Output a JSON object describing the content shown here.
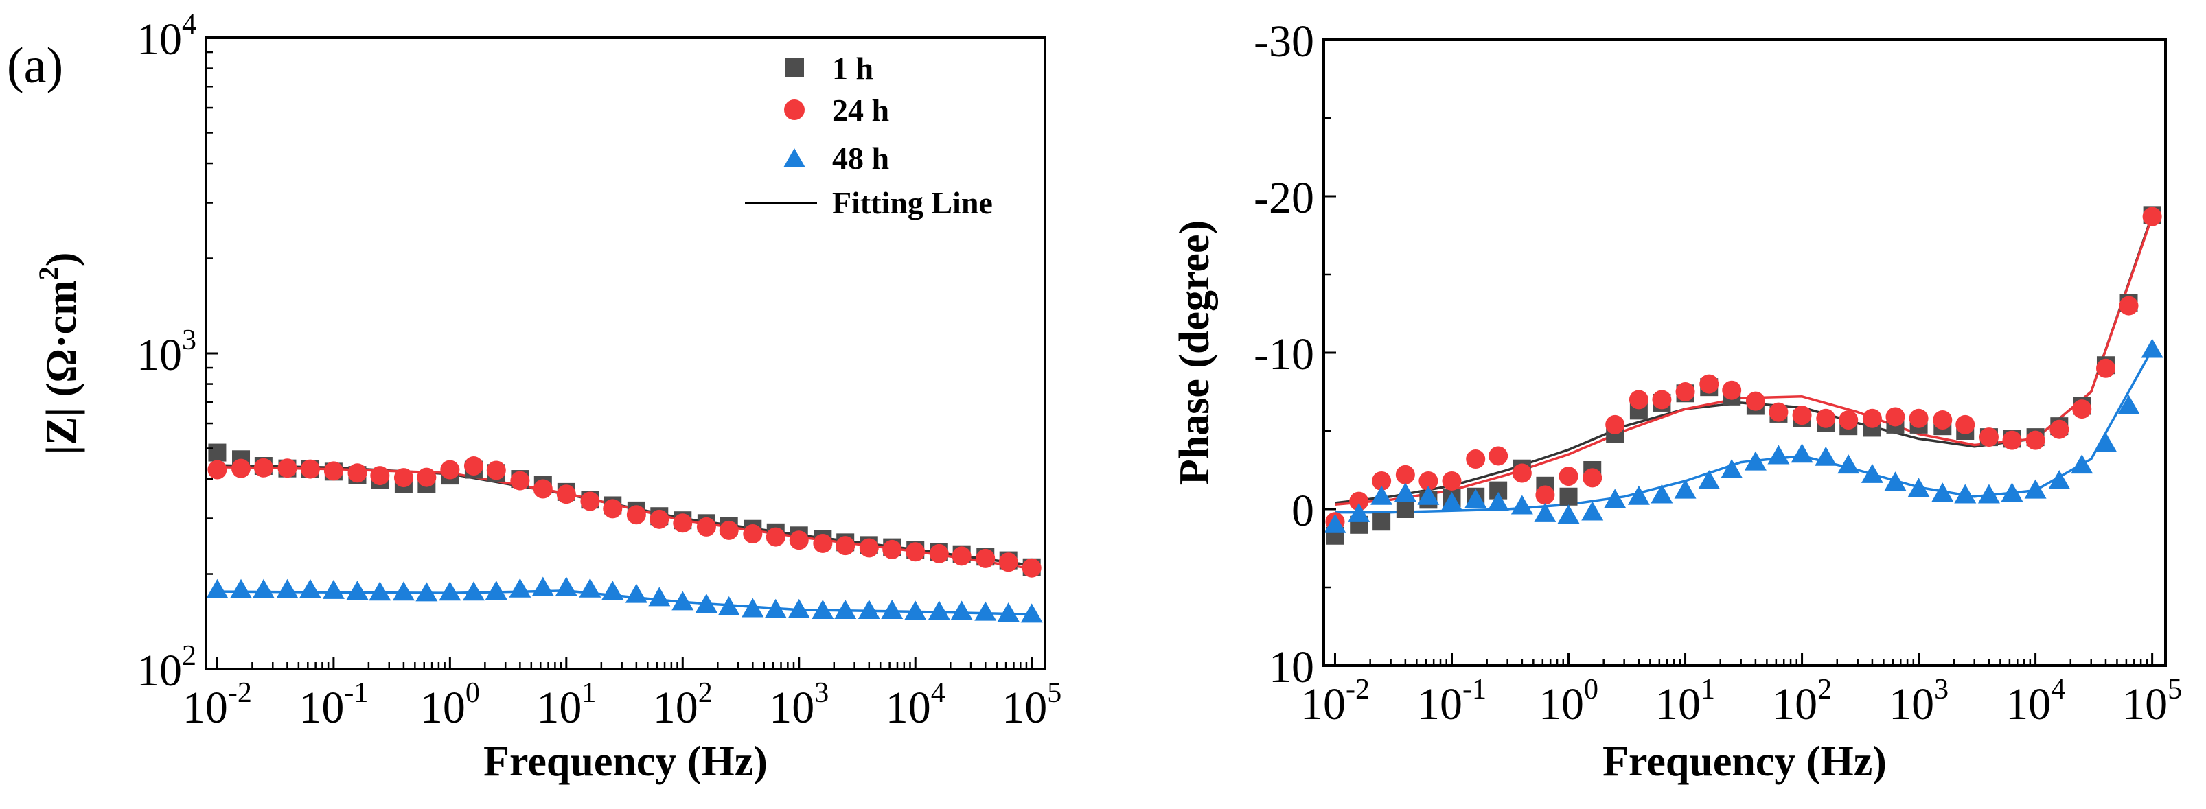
{
  "panel_label": "(a)",
  "colors": {
    "h1": "#4d4d4d",
    "h24": "#f2393b",
    "h48": "#1c7fdb",
    "fit_h1": "#333333",
    "fit_h24": "#e8353a",
    "fit_h48": "#1c7fdb",
    "axis": "#000000"
  },
  "legend": {
    "h1": "1 h",
    "h24": "24 h",
    "h48": "48 h",
    "fit": "Fitting Line"
  },
  "chart_data": [
    {
      "type": "scatter",
      "title": "",
      "xlabel": "Frequency (Hz)",
      "ylabel_parts": {
        "main": "|Z| (Ω·cm",
        "sup": "2",
        "end": ")"
      },
      "xscale": "log",
      "yscale": "log",
      "xlim": [
        0.008,
        130000
      ],
      "ylim": [
        100,
        10000
      ],
      "xticks": [
        {
          "base": "10",
          "exp": "-2",
          "value": 0.01
        },
        {
          "base": "10",
          "exp": "-1",
          "value": 0.1
        },
        {
          "base": "10",
          "exp": "0",
          "value": 1
        },
        {
          "base": "10",
          "exp": "1",
          "value": 10
        },
        {
          "base": "10",
          "exp": "2",
          "value": 100
        },
        {
          "base": "10",
          "exp": "3",
          "value": 1000
        },
        {
          "base": "10",
          "exp": "4",
          "value": 10000
        },
        {
          "base": "10",
          "exp": "5",
          "value": 100000
        }
      ],
      "yticks": [
        {
          "base": "10",
          "exp": "2",
          "value": 100
        },
        {
          "base": "10",
          "exp": "3",
          "value": 1000
        },
        {
          "base": "10",
          "exp": "4",
          "value": 10000
        }
      ],
      "legend_position": "top-right",
      "x": [
        0.01,
        0.016,
        0.025,
        0.04,
        0.063,
        0.1,
        0.16,
        0.25,
        0.4,
        0.63,
        1,
        1.6,
        2.5,
        4,
        6.3,
        10,
        16,
        25,
        40,
        63,
        100,
        160,
        250,
        400,
        630,
        1000,
        1600,
        2500,
        4000,
        6300,
        10000,
        16000,
        25000,
        40000,
        63000,
        100000
      ],
      "series": [
        {
          "name": "1 h",
          "key": "h1",
          "marker": "square",
          "values": [
            485,
            462,
            440,
            432,
            430,
            422,
            412,
            398,
            385,
            385,
            410,
            428,
            418,
            400,
            384,
            364,
            344,
            330,
            318,
            305,
            296,
            290,
            284,
            278,
            271,
            265,
            258,
            252,
            247,
            243,
            238,
            235,
            231,
            227,
            221,
            210
          ]
        },
        {
          "name": "24 h",
          "key": "h24",
          "marker": "circle",
          "values": [
            428,
            432,
            434,
            433,
            430,
            424,
            418,
            410,
            404,
            405,
            428,
            440,
            426,
            395,
            372,
            358,
            340,
            322,
            308,
            298,
            290,
            282,
            275,
            268,
            262,
            256,
            250,
            246,
            242,
            239,
            235,
            232,
            228,
            224,
            218,
            209
          ]
        },
        {
          "name": "48 h",
          "key": "h48",
          "marker": "triangle",
          "values": [
            178,
            178,
            178,
            178,
            178,
            177,
            176,
            175,
            175,
            174,
            175,
            175,
            176,
            179,
            181,
            181,
            179,
            176,
            172,
            168,
            163,
            160,
            157,
            155,
            154,
            154,
            153,
            153,
            153,
            153,
            152,
            152,
            152,
            151,
            150,
            149
          ]
        }
      ],
      "fit_x": [
        0.01,
        0.1,
        1,
        10,
        100,
        1000,
        10000,
        100000
      ],
      "fits": [
        {
          "key": "h1",
          "values": [
            442,
            435,
            415,
            358,
            300,
            266,
            239,
            213
          ]
        },
        {
          "key": "h24",
          "values": [
            436,
            430,
            418,
            360,
            296,
            262,
            236,
            208
          ]
        },
        {
          "key": "h48",
          "values": [
            176,
            175,
            174,
            177,
            163,
            154,
            152,
            149
          ]
        }
      ]
    },
    {
      "type": "scatter",
      "title": "",
      "xlabel": "Frequency (Hz)",
      "ylabel": "Phase (degree)",
      "xscale": "log",
      "yscale": "linear",
      "y_inverted": true,
      "xlim": [
        0.008,
        130000
      ],
      "ylim": [
        10,
        -30
      ],
      "xticks": [
        {
          "base": "10",
          "exp": "-2",
          "value": 0.01
        },
        {
          "base": "10",
          "exp": "-1",
          "value": 0.1
        },
        {
          "base": "10",
          "exp": "0",
          "value": 1
        },
        {
          "base": "10",
          "exp": "1",
          "value": 10
        },
        {
          "base": "10",
          "exp": "2",
          "value": 100
        },
        {
          "base": "10",
          "exp": "3",
          "value": 1000
        },
        {
          "base": "10",
          "exp": "4",
          "value": 10000
        },
        {
          "base": "10",
          "exp": "5",
          "value": 100000
        }
      ],
      "yticks": [
        {
          "label": "10",
          "value": 10
        },
        {
          "label": "0",
          "value": 0
        },
        {
          "label": "-10",
          "value": -10
        },
        {
          "label": "-20",
          "value": -20
        },
        {
          "label": "-30",
          "value": -30
        }
      ],
      "x": [
        0.01,
        0.016,
        0.025,
        0.04,
        0.063,
        0.1,
        0.16,
        0.25,
        0.4,
        0.63,
        1,
        1.6,
        2.5,
        4,
        6.3,
        10,
        16,
        25,
        40,
        63,
        100,
        160,
        250,
        400,
        630,
        1000,
        1600,
        2500,
        4000,
        6300,
        10000,
        16000,
        25000,
        40000,
        63000,
        100000
      ],
      "series": [
        {
          "name": "1 h",
          "key": "h1",
          "marker": "square",
          "values": [
            1.7,
            1.0,
            0.8,
            0,
            -0.6,
            -0.7,
            -0.8,
            -1.2,
            -2.6,
            -1.5,
            -0.8,
            -2.5,
            -4.8,
            -6.3,
            -6.8,
            -7.4,
            -7.8,
            -7.2,
            -6.6,
            -6.1,
            -5.8,
            -5.5,
            -5.3,
            -5.2,
            -5.4,
            -5.4,
            -5.3,
            -5.0,
            -4.6,
            -4.5,
            -4.6,
            -5.3,
            -6.6,
            -9.2,
            -13.2,
            -18.8
          ]
        },
        {
          "name": "24 h",
          "key": "h24",
          "marker": "circle",
          "values": [
            0.8,
            -0.5,
            -1.8,
            -2.2,
            -1.8,
            -1.8,
            -3.2,
            -3.4,
            -2.3,
            -0.9,
            -2.1,
            -2.0,
            -5.4,
            -7.0,
            -7.0,
            -7.5,
            -8.0,
            -7.6,
            -6.9,
            -6.2,
            -6.0,
            -5.8,
            -5.7,
            -5.8,
            -5.9,
            -5.8,
            -5.7,
            -5.4,
            -4.6,
            -4.4,
            -4.4,
            -5.1,
            -6.4,
            -9.0,
            -13.0,
            -18.7
          ]
        },
        {
          "name": "48 h",
          "key": "h48",
          "marker": "triangle",
          "values": [
            1.0,
            0.3,
            -0.8,
            -1.0,
            -0.8,
            -0.4,
            -0.6,
            -0.4,
            -0.2,
            0.3,
            0.4,
            0.2,
            -0.6,
            -0.8,
            -0.9,
            -1.2,
            -1.8,
            -2.5,
            -3.0,
            -3.4,
            -3.5,
            -3.3,
            -2.8,
            -2.2,
            -1.7,
            -1.3,
            -1.0,
            -0.9,
            -0.9,
            -1.0,
            -1.2,
            -1.8,
            -2.8,
            -4.2,
            -6.6,
            -10.2
          ]
        }
      ],
      "fit_x": [
        0.01,
        0.03,
        0.1,
        0.3,
        1,
        3,
        10,
        30,
        100,
        300,
        1000,
        3000,
        10000,
        30000,
        100000
      ],
      "fits": [
        {
          "key": "h1",
          "values": [
            -0.4,
            -0.8,
            -1.5,
            -2.5,
            -3.8,
            -5.3,
            -6.4,
            -6.8,
            -6.5,
            -5.5,
            -4.5,
            -4.0,
            -4.5,
            -7.5,
            -18.8
          ]
        },
        {
          "key": "h24",
          "values": [
            -0.3,
            -0.6,
            -1.2,
            -2.2,
            -3.5,
            -5.0,
            -6.4,
            -7.1,
            -7.2,
            -6.2,
            -4.8,
            -4.1,
            -4.5,
            -7.5,
            -18.7
          ]
        },
        {
          "key": "h48",
          "values": [
            0.2,
            0.2,
            0.1,
            0,
            -0.3,
            -0.8,
            -1.8,
            -3.0,
            -3.4,
            -2.5,
            -1.4,
            -0.8,
            -1.2,
            -3.2,
            -10.2
          ]
        }
      ]
    }
  ]
}
